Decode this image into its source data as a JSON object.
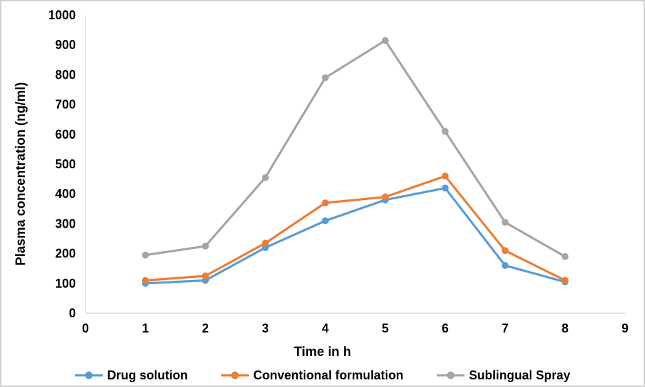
{
  "chart_data": {
    "type": "line",
    "title": "",
    "xlabel": "Time in h",
    "ylabel": "Plasma concentration (ng/ml)",
    "x": [
      1,
      2,
      3,
      4,
      5,
      6,
      7,
      8
    ],
    "series": [
      {
        "name": "Drug solution",
        "color": "#5B9BD5",
        "values": [
          100,
          110,
          220,
          310,
          380,
          420,
          160,
          105
        ]
      },
      {
        "name": "Conventional formulation",
        "color": "#ED7D31",
        "values": [
          110,
          125,
          235,
          370,
          390,
          460,
          210,
          110
        ]
      },
      {
        "name": "Sublingual Spray",
        "color": "#A5A5A5",
        "values": [
          195,
          225,
          455,
          790,
          915,
          610,
          305,
          190
        ]
      }
    ],
    "xlim": [
      0,
      9
    ],
    "ylim": [
      0,
      1000
    ],
    "x_ticks": [
      0,
      1,
      2,
      3,
      4,
      5,
      6,
      7,
      8,
      9
    ],
    "y_ticks": [
      0,
      100,
      200,
      300,
      400,
      500,
      600,
      700,
      800,
      900,
      1000
    ],
    "grid": false,
    "legend_position": "bottom",
    "marker": "circle",
    "axis_color": "#D9D9D9",
    "text_color": "#000000"
  }
}
